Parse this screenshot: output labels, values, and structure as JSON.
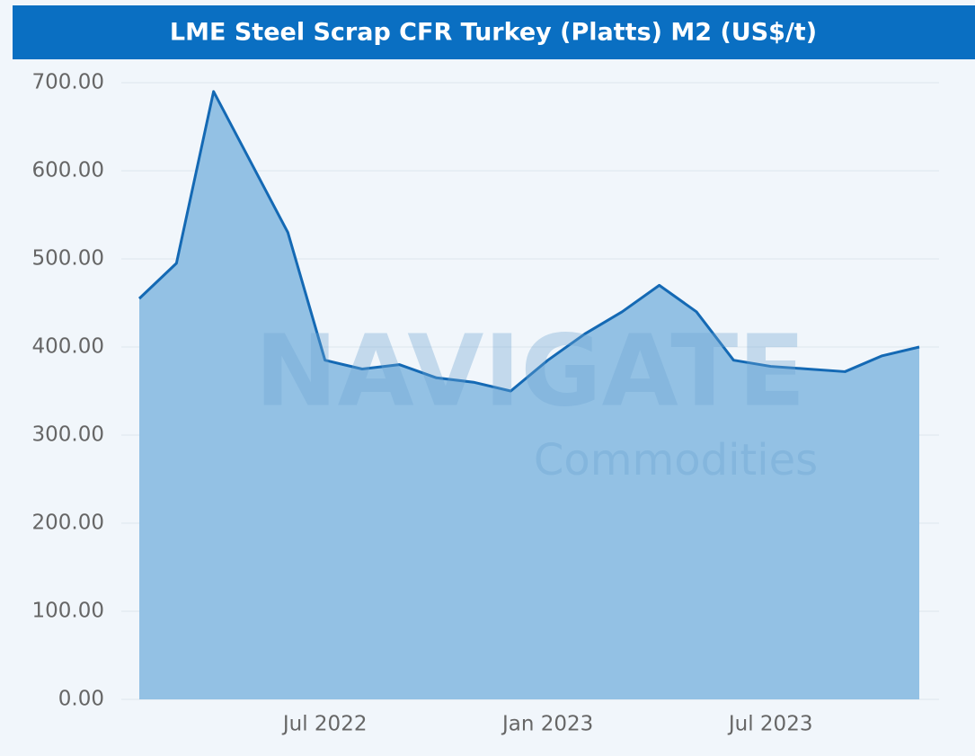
{
  "chart_data": {
    "type": "area",
    "title": "LME Steel Scrap CFR Turkey (Platts) M2 (US$/t)",
    "watermark": [
      "NAVIGATE",
      "Commodities"
    ],
    "x": [
      "2022-02",
      "2022-03",
      "2022-04",
      "2022-05",
      "2022-06",
      "2022-07",
      "2022-08",
      "2022-09",
      "2022-10",
      "2022-11",
      "2022-12",
      "2023-01",
      "2023-02",
      "2023-03",
      "2023-04",
      "2023-05",
      "2023-06",
      "2023-07",
      "2023-08",
      "2023-09",
      "2023-10",
      "2023-11"
    ],
    "series": [
      {
        "name": "LME Steel Scrap CFR Turkey (Platts) M2",
        "color": "#1469b4",
        "fill": "#93c1e4",
        "values": [
          455,
          495,
          690,
          610,
          530,
          385,
          375,
          380,
          365,
          360,
          350,
          385,
          415,
          440,
          470,
          440,
          385,
          378,
          375,
          372,
          390,
          400
        ]
      }
    ],
    "ylim": [
      0,
      700
    ],
    "yticks": [
      {
        "value": 0,
        "label": "0.00"
      },
      {
        "value": 100,
        "label": "100.00"
      },
      {
        "value": 200,
        "label": "200.00"
      },
      {
        "value": 300,
        "label": "300.00"
      },
      {
        "value": 400,
        "label": "400.00"
      },
      {
        "value": 500,
        "label": "500.00"
      },
      {
        "value": 600,
        "label": "600.00"
      },
      {
        "value": 700,
        "label": "700.00"
      }
    ],
    "xticks": [
      {
        "value": "2022-07",
        "label": "Jul 2022"
      },
      {
        "value": "2023-01",
        "label": "Jan 2023"
      },
      {
        "value": "2023-07",
        "label": "Jul 2023"
      }
    ],
    "grid": true
  }
}
